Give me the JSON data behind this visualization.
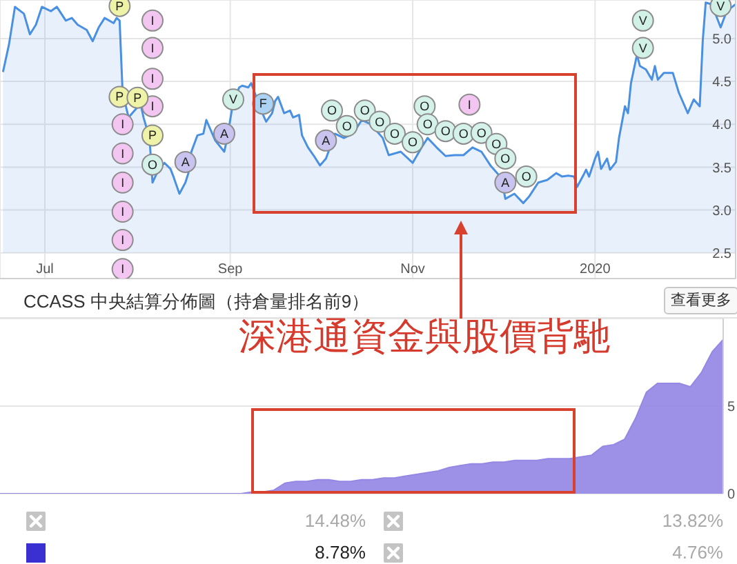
{
  "chart_data": [
    {
      "type": "area",
      "x": [
        "2019-06-17",
        "2019-06-19",
        "2019-06-21",
        "2019-06-24",
        "2019-06-26",
        "2019-06-28",
        "2019-06-30",
        "2019-07-03",
        "2019-07-05",
        "2019-07-08",
        "2019-07-10",
        "2019-07-12",
        "2019-07-15",
        "2019-07-17",
        "2019-07-19",
        "2019-07-21",
        "2019-07-24",
        "2019-07-25",
        "2019-07-26",
        "2019-07-27",
        "2019-07-29",
        "2019-07-31",
        "2019-08-02",
        "2019-08-03",
        "2019-08-05",
        "2019-08-06",
        "2019-08-08",
        "2019-08-10",
        "2019-08-12",
        "2019-08-13",
        "2019-08-15",
        "2019-08-17",
        "2019-08-18",
        "2019-08-19",
        "2019-08-21",
        "2019-08-23",
        "2019-08-24",
        "2019-08-25",
        "2019-08-27",
        "2019-08-30",
        "2019-08-31",
        "2019-09-02",
        "2019-09-04",
        "2019-09-05",
        "2019-09-07",
        "2019-09-08",
        "2019-09-10",
        "2019-09-12",
        "2019-09-13",
        "2019-09-15",
        "2019-09-16",
        "2019-09-17",
        "2019-09-19",
        "2019-09-21",
        "2019-09-22",
        "2019-09-24",
        "2019-09-25",
        "2019-09-27",
        "2019-09-29",
        "2019-10-01",
        "2019-10-03",
        "2019-10-05",
        "2019-10-06",
        "2019-10-09",
        "2019-10-12",
        "2019-10-15",
        "2019-10-18",
        "2019-10-22",
        "2019-10-24",
        "2019-10-28",
        "2019-11-01",
        "2019-11-04",
        "2019-11-06",
        "2019-11-09",
        "2019-11-12",
        "2019-11-15",
        "2019-11-18",
        "2019-11-21",
        "2019-11-24",
        "2019-11-27",
        "2019-11-30",
        "2019-12-01",
        "2019-12-02",
        "2019-12-05",
        "2019-12-08",
        "2019-12-10",
        "2019-12-13",
        "2019-12-16",
        "2019-12-19",
        "2019-12-21",
        "2019-12-23",
        "2019-12-25",
        "2019-12-26",
        "2019-12-28",
        "2019-12-29",
        "2019-12-30",
        "2020-01-01",
        "2020-01-02",
        "2020-01-03",
        "2020-01-05",
        "2020-01-06",
        "2020-01-08",
        "2020-01-09",
        "2020-01-11",
        "2020-01-12",
        "2020-01-13",
        "2020-01-15",
        "2020-01-16",
        "2020-01-18",
        "2020-01-20",
        "2020-01-21",
        "2020-01-22",
        "2020-01-24",
        "2020-01-27",
        "2020-01-29",
        "2020-02-01",
        "2020-02-03",
        "2020-02-05",
        "2020-02-06",
        "2020-02-07",
        "2020-02-09",
        "2020-02-12",
        "2020-02-14",
        "2020-02-17"
      ],
      "series": [
        {
          "color": "#4a90e2",
          "values": [
            4.61,
            4.93,
            5.37,
            5.29,
            5.05,
            5.16,
            5.37,
            5.32,
            5.37,
            5.21,
            5.24,
            5.16,
            5.1,
            4.97,
            5.13,
            5.24,
            5.18,
            5.24,
            5.21,
            4.37,
            4.08,
            4.16,
            4.24,
            4.08,
            3.84,
            3.32,
            3.47,
            3.55,
            3.48,
            3.39,
            3.19,
            3.32,
            3.43,
            3.68,
            3.87,
            3.89,
            4.05,
            3.97,
            3.81,
            3.68,
            3.84,
            4.27,
            4.43,
            4.45,
            4.43,
            4.48,
            4.29,
            4.11,
            4.03,
            4.13,
            4.27,
            4.32,
            4.13,
            4.16,
            4.08,
            4.11,
            3.87,
            3.73,
            3.63,
            3.52,
            3.6,
            3.79,
            3.89,
            3.84,
            3.89,
            4.05,
            4.0,
            3.84,
            3.64,
            3.68,
            3.55,
            3.73,
            3.84,
            3.73,
            3.63,
            3.64,
            3.64,
            3.73,
            3.68,
            3.52,
            3.4,
            3.31,
            3.13,
            3.19,
            3.08,
            3.16,
            3.32,
            3.35,
            3.43,
            3.39,
            3.4,
            3.39,
            3.27,
            3.4,
            3.47,
            3.39,
            3.6,
            3.68,
            3.48,
            3.6,
            3.47,
            3.56,
            3.84,
            4.21,
            4.13,
            4.48,
            4.81,
            4.68,
            4.64,
            4.52,
            4.68,
            4.52,
            4.6,
            4.6,
            4.37,
            4.13,
            4.29,
            4.21,
            4.97,
            5.42,
            5.4,
            5.13,
            5.32,
            5.4
          ]
        },
        {
          "type": "scatter",
          "name": "I",
          "color": "#f2c6f0",
          "marker": "circle",
          "x": [
            "2019-07-27",
            "2019-07-27",
            "2019-07-27",
            "2019-07-27",
            "2019-07-27",
            "2019-07-27",
            "2019-08-06",
            "2019-08-06",
            "2019-08-06",
            "2019-08-06",
            "2019-11-20"
          ],
          "values": [
            4.0,
            3.66,
            3.32,
            2.98,
            2.65,
            2.31,
            5.21,
            4.89,
            4.53,
            4.21,
            4.23
          ]
        },
        {
          "type": "scatter",
          "name": "P",
          "color": "#eef3a8",
          "marker": "circle",
          "x": [
            "2019-07-26",
            "2019-07-26",
            "2019-08-01",
            "2019-08-06"
          ],
          "values": [
            5.38,
            4.32,
            4.31,
            3.87
          ]
        },
        {
          "type": "scatter",
          "name": "A",
          "color": "#c9c3ef",
          "marker": "circle",
          "x": [
            "2019-08-17",
            "2019-08-30",
            "2019-10-03",
            "2019-12-02"
          ],
          "values": [
            3.56,
            3.89,
            3.81,
            3.32
          ]
        },
        {
          "type": "scatter",
          "name": "V",
          "color": "#d2f1e6",
          "marker": "circle",
          "x": [
            "2019-09-02",
            "2020-01-17",
            "2020-01-17",
            "2020-02-12"
          ],
          "values": [
            4.29,
            5.21,
            4.89,
            5.38
          ]
        },
        {
          "type": "scatter",
          "name": "F",
          "color": "#acd3f3",
          "marker": "circle",
          "x": [
            "2019-09-12"
          ],
          "values": [
            4.24
          ]
        },
        {
          "type": "scatter",
          "name": "O",
          "color": "#d4f2ea",
          "marker": "circle",
          "x": [
            "2019-08-06",
            "2019-10-05",
            "2019-10-10",
            "2019-10-16",
            "2019-10-21",
            "2019-10-26",
            "2019-11-01",
            "2019-11-05",
            "2019-11-06",
            "2019-11-12",
            "2019-11-18",
            "2019-11-24",
            "2019-11-29",
            "2019-12-02",
            "2019-12-09"
          ],
          "values": [
            3.53,
            4.16,
            3.98,
            4.16,
            4.03,
            3.89,
            3.79,
            4.21,
            4.0,
            3.92,
            3.89,
            3.9,
            3.77,
            3.6,
            3.39
          ]
        }
      ],
      "xlim": [
        "2019-06-16",
        "2020-02-17"
      ],
      "xticks": [
        {
          "value": "2019-07-01",
          "label": "Jul"
        },
        {
          "value": "2019-09-01",
          "label": "Sep"
        },
        {
          "value": "2019-11-01",
          "label": "Nov"
        },
        {
          "value": "2020-01-01",
          "label": "2020"
        }
      ],
      "ylim": [
        2.2,
        5.45
      ],
      "yticks": [
        2.5,
        {
          "value": 3,
          "label": "3.0"
        },
        3.5,
        {
          "value": 4,
          "label": "4.0"
        },
        4.5,
        {
          "value": 5,
          "label": "5.0"
        }
      ],
      "grid": true
    },
    {
      "type": "area",
      "title": "CCASS 中央結算分佈圖（持倉量排名前9）",
      "annotations": [
        "深港通資金與股價背馳",
        "查看更多"
      ],
      "categories": [
        null,
        null,
        null,
        null,
        null,
        null,
        null,
        null,
        null,
        null,
        null,
        null,
        null,
        null,
        null,
        null,
        null,
        null,
        null,
        null,
        null,
        null,
        null,
        null,
        null,
        null,
        null,
        null,
        null,
        null,
        null,
        null,
        null,
        null,
        null,
        null,
        null,
        null,
        null,
        null,
        null,
        null,
        null,
        null,
        null,
        null,
        null,
        null,
        null,
        null,
        null,
        null,
        null,
        null,
        null,
        null,
        null,
        null,
        null,
        null,
        null,
        null,
        null,
        null,
        null,
        null,
        null
      ],
      "series": [
        {
          "color": "#9488e4",
          "values": [
            0,
            0,
            0,
            0,
            0,
            0,
            0,
            0,
            0,
            0,
            0,
            0,
            0,
            0,
            0,
            0,
            0,
            0,
            0,
            0,
            0,
            0,
            0,
            0.1,
            0.1,
            0.2,
            0.6,
            0.7,
            0.7,
            0.8,
            0.8,
            0.7,
            0.7,
            0.8,
            0.8,
            0.9,
            0.9,
            1.0,
            1.1,
            1.2,
            1.3,
            1.5,
            1.6,
            1.7,
            1.7,
            1.8,
            1.8,
            1.9,
            1.9,
            1.9,
            2.0,
            2.0,
            2.0,
            2.1,
            2.2,
            2.7,
            2.8,
            3.1,
            4.3,
            5.8,
            6.3,
            6.3,
            6.3,
            6.1,
            6.9,
            8.1,
            8.8
          ]
        }
      ],
      "ylim": [
        0,
        10
      ],
      "yticks": [
        0,
        5
      ],
      "grid": "y",
      "tick_labels": "y"
    },
    {
      "type": "other",
      "annotations": [
        "14.48%",
        "13.82%",
        "8.78%",
        "4.76%"
      ]
    }
  ]
}
